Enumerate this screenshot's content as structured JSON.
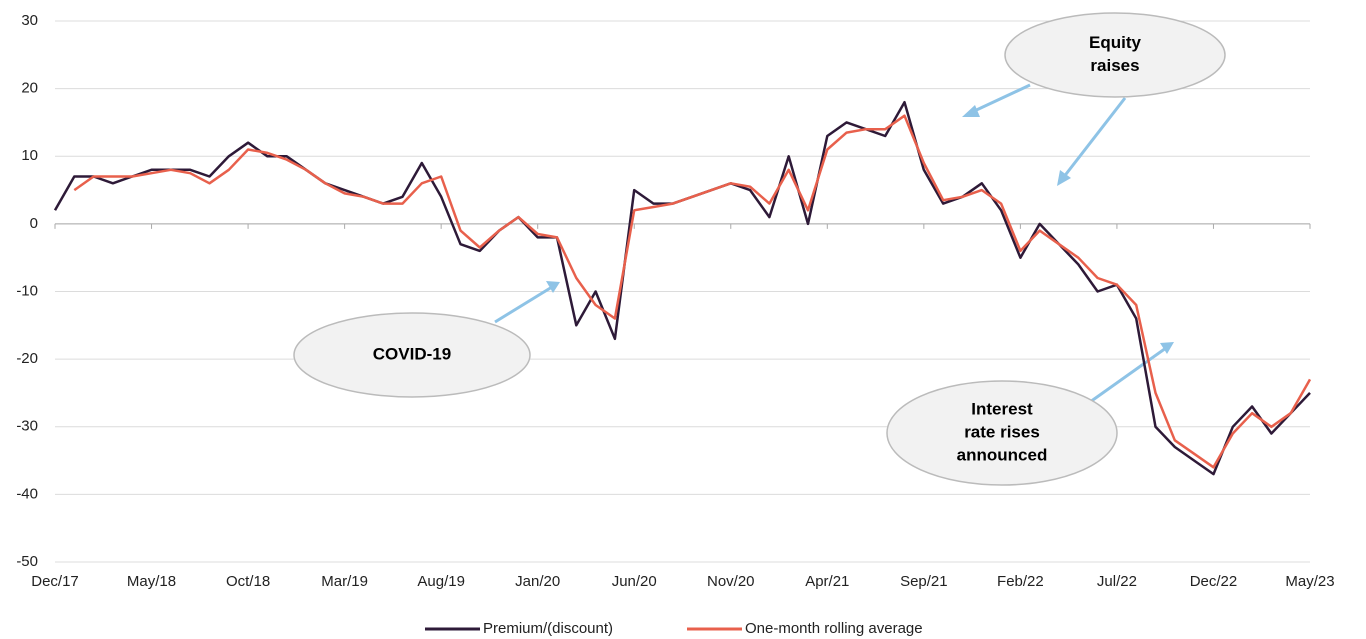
{
  "chart_data": {
    "type": "line",
    "categories": [
      "Dec/17",
      null,
      null,
      null,
      null,
      "May/18",
      null,
      null,
      null,
      null,
      "Oct/18",
      null,
      null,
      null,
      null,
      "Mar/19",
      null,
      null,
      null,
      null,
      "Aug/19",
      null,
      null,
      null,
      null,
      "Jan/20",
      null,
      null,
      null,
      null,
      "Jun/20",
      null,
      null,
      null,
      null,
      "Nov/20",
      null,
      null,
      null,
      null,
      "Apr/21",
      null,
      null,
      null,
      null,
      "Sep/21",
      null,
      null,
      null,
      null,
      "Feb/22",
      null,
      null,
      null,
      null,
      "Jul/22",
      null,
      null,
      null,
      null,
      "Dec/22",
      null,
      null,
      null,
      null,
      "May/23"
    ],
    "series": [
      {
        "name": "Premium/(discount)",
        "color": "#2e1a38",
        "values": [
          2,
          7,
          7,
          6,
          7,
          8,
          8,
          8,
          7,
          10,
          12,
          10,
          10,
          8,
          6,
          5,
          4,
          3,
          4,
          9,
          4,
          -3,
          -4,
          -1,
          1,
          -2,
          -2,
          -15,
          -10,
          -17,
          5,
          3,
          3,
          4,
          5,
          6,
          5,
          1,
          10,
          0,
          13,
          15,
          14,
          13,
          18,
          8,
          3,
          4,
          6,
          2,
          -5,
          0,
          -3,
          -6,
          -10,
          -9,
          -14,
          -30,
          -33,
          -35,
          -37,
          -30,
          -27,
          -31,
          -28,
          -25
        ]
      },
      {
        "name": "One-month rolling average",
        "color": "#e8604c",
        "values": [
          null,
          5,
          7,
          7,
          7,
          7.5,
          8,
          7.5,
          6,
          8,
          11,
          10.5,
          9.5,
          8,
          6,
          4.5,
          4,
          3,
          3,
          6,
          7,
          -1,
          -3.5,
          -1,
          1,
          -1.5,
          -2,
          -8,
          -12,
          -14,
          2,
          2.5,
          3,
          4,
          5,
          6,
          5.5,
          3,
          8,
          2,
          11,
          13.5,
          14,
          14,
          16,
          9,
          3.5,
          4,
          5,
          3,
          -4,
          -1,
          -3,
          -5,
          -8,
          -9,
          -12,
          -25,
          -32,
          -34,
          -36,
          -31,
          -28,
          -30,
          -28,
          -23
        ]
      }
    ],
    "ylim": [
      -50,
      30
    ],
    "yticks": [
      -50,
      -40,
      -30,
      -20,
      -10,
      0,
      10,
      20,
      30
    ],
    "grid": true,
    "legend": "bottom",
    "annotations": [
      {
        "lines": [
          "Equity",
          "raises"
        ]
      },
      {
        "lines": [
          "COVID-19"
        ]
      },
      {
        "lines": [
          "Interest",
          "rate rises",
          "announced"
        ]
      }
    ]
  }
}
